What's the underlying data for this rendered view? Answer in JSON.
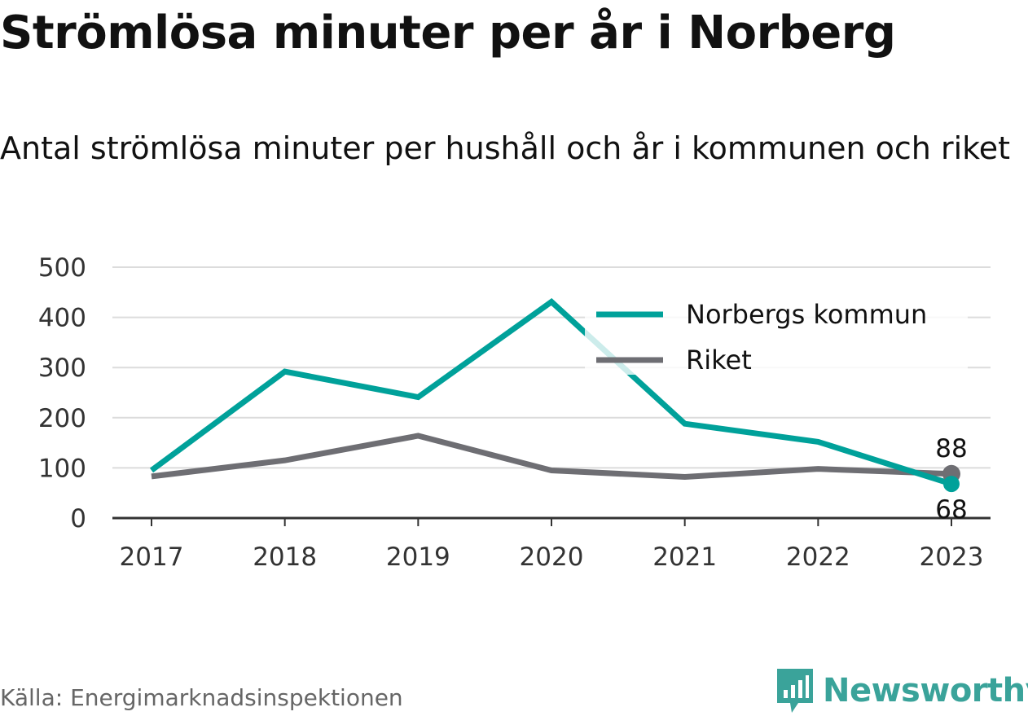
{
  "title": "Strömlösa minuter per år i Norberg",
  "subtitle": "Antal strömlösa minuter per hushåll och år i kommunen och riket",
  "source": "Källa: Energimarknadsinspektionen",
  "brand": "Newsworthy",
  "colors": {
    "norberg": "#00a19a",
    "riket": "#6e6e73",
    "grid": "#dcdcdc",
    "axis": "#333333",
    "brand": "#3aa39a"
  },
  "chart_data": {
    "type": "line",
    "title": "Strömlösa minuter per år i Norberg",
    "subtitle": "Antal strömlösa minuter per hushåll och år i kommunen och riket",
    "categories": [
      "2017",
      "2018",
      "2019",
      "2020",
      "2021",
      "2022",
      "2023"
    ],
    "series": [
      {
        "name": "Norbergs kommun",
        "color": "#00a19a",
        "values": [
          95,
          292,
          241,
          431,
          188,
          152,
          68
        ]
      },
      {
        "name": "Riket",
        "color": "#6e6e73",
        "values": [
          83,
          115,
          164,
          95,
          82,
          98,
          88
        ]
      }
    ],
    "yticks": [
      0,
      100,
      200,
      300,
      400,
      500
    ],
    "ylim": [
      0,
      500
    ],
    "grid": true,
    "legend_position": "top-right",
    "end_labels": {
      "Riket": "88",
      "Norbergs kommun": "68"
    }
  }
}
